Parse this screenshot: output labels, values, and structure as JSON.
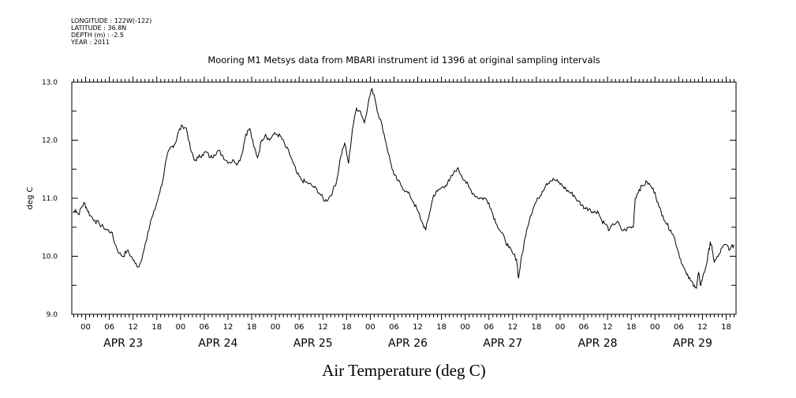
{
  "meta": {
    "longitude": "LONGITUDE : 122W(-122)",
    "latitude": "LATITUDE : 36.8N",
    "depth": "DEPTH (m) : -2.5",
    "year": "YEAR : 2011"
  },
  "chart_data": {
    "type": "line",
    "title": "Mooring M1 Metsys data from MBARI instrument id 1396 at original sampling intervals",
    "xlabel": "Air Temperature (deg C)",
    "ylabel": "deg C",
    "ylim": [
      9.0,
      13.0
    ],
    "y_ticks": [
      "9.0",
      "10.0",
      "11.0",
      "12.0",
      "13.0"
    ],
    "x_range_hours": [
      -3.5,
      164.5
    ],
    "hour_ticks": [
      {
        "h": 0,
        "label": "00"
      },
      {
        "h": 6,
        "label": "06"
      },
      {
        "h": 12,
        "label": "12"
      },
      {
        "h": 18,
        "label": "18"
      },
      {
        "h": 24,
        "label": "00"
      },
      {
        "h": 30,
        "label": "06"
      },
      {
        "h": 36,
        "label": "12"
      },
      {
        "h": 42,
        "label": "18"
      },
      {
        "h": 48,
        "label": "00"
      },
      {
        "h": 54,
        "label": "06"
      },
      {
        "h": 60,
        "label": "12"
      },
      {
        "h": 66,
        "label": "18"
      },
      {
        "h": 72,
        "label": "00"
      },
      {
        "h": 78,
        "label": "06"
      },
      {
        "h": 84,
        "label": "12"
      },
      {
        "h": 90,
        "label": "18"
      },
      {
        "h": 96,
        "label": "00"
      },
      {
        "h": 102,
        "label": "06"
      },
      {
        "h": 108,
        "label": "12"
      },
      {
        "h": 114,
        "label": "18"
      },
      {
        "h": 120,
        "label": "00"
      },
      {
        "h": 126,
        "label": "06"
      },
      {
        "h": 132,
        "label": "12"
      },
      {
        "h": 138,
        "label": "18"
      },
      {
        "h": 144,
        "label": "00"
      },
      {
        "h": 150,
        "label": "06"
      },
      {
        "h": 156,
        "label": "12"
      },
      {
        "h": 162,
        "label": "18"
      }
    ],
    "day_labels": [
      {
        "h": 9.5,
        "label": "APR 23"
      },
      {
        "h": 33.5,
        "label": "APR 24"
      },
      {
        "h": 57.5,
        "label": "APR 25"
      },
      {
        "h": 81.5,
        "label": "APR 26"
      },
      {
        "h": 105.5,
        "label": "APR 27"
      },
      {
        "h": 129.5,
        "label": "APR 28"
      },
      {
        "h": 153.5,
        "label": "APR 29"
      }
    ],
    "series": [
      {
        "color": "#000000",
        "points": [
          [
            -3.2,
            10.75
          ],
          [
            -2.5,
            10.8
          ],
          [
            -1.8,
            10.72
          ],
          [
            -1.0,
            10.85
          ],
          [
            -0.3,
            10.92
          ],
          [
            0.3,
            10.82
          ],
          [
            1.2,
            10.7
          ],
          [
            2.3,
            10.62
          ],
          [
            3.5,
            10.55
          ],
          [
            4.5,
            10.5
          ],
          [
            5.5,
            10.45
          ],
          [
            6.5,
            10.42
          ],
          [
            7.5,
            10.2
          ],
          [
            8.5,
            10.05
          ],
          [
            9.5,
            10.0
          ],
          [
            10.5,
            10.1
          ],
          [
            11.5,
            10.0
          ],
          [
            12.5,
            9.88
          ],
          [
            13.5,
            9.82
          ],
          [
            14.5,
            10.05
          ],
          [
            15.5,
            10.3
          ],
          [
            16.5,
            10.62
          ],
          [
            17.5,
            10.8
          ],
          [
            18.5,
            11.05
          ],
          [
            19.5,
            11.3
          ],
          [
            20.5,
            11.7
          ],
          [
            21.3,
            11.85
          ],
          [
            22.0,
            11.9
          ],
          [
            22.7,
            11.95
          ],
          [
            23.5,
            12.15
          ],
          [
            24.5,
            12.25
          ],
          [
            25.5,
            12.2
          ],
          [
            26.5,
            11.85
          ],
          [
            27.5,
            11.65
          ],
          [
            28.5,
            11.7
          ],
          [
            29.5,
            11.75
          ],
          [
            30.5,
            11.8
          ],
          [
            31.5,
            11.7
          ],
          [
            32.5,
            11.75
          ],
          [
            33.5,
            11.82
          ],
          [
            34.5,
            11.75
          ],
          [
            35.5,
            11.65
          ],
          [
            36.5,
            11.62
          ],
          [
            37.5,
            11.65
          ],
          [
            38.5,
            11.6
          ],
          [
            39.5,
            11.75
          ],
          [
            40.5,
            12.1
          ],
          [
            41.5,
            12.2
          ],
          [
            42.5,
            11.9
          ],
          [
            43.5,
            11.7
          ],
          [
            44.5,
            12.0
          ],
          [
            45.5,
            12.1
          ],
          [
            46.5,
            12.0
          ],
          [
            47.5,
            12.1
          ],
          [
            48.5,
            12.1
          ],
          [
            49.5,
            12.05
          ],
          [
            50.5,
            11.9
          ],
          [
            51.5,
            11.78
          ],
          [
            52.5,
            11.6
          ],
          [
            53.5,
            11.42
          ],
          [
            54.5,
            11.32
          ],
          [
            55.5,
            11.28
          ],
          [
            56.5,
            11.25
          ],
          [
            57.5,
            11.2
          ],
          [
            58.5,
            11.15
          ],
          [
            59.5,
            11.05
          ],
          [
            60.5,
            10.95
          ],
          [
            61.5,
            11.0
          ],
          [
            62.5,
            11.12
          ],
          [
            63.5,
            11.3
          ],
          [
            64.5,
            11.72
          ],
          [
            65.5,
            11.95
          ],
          [
            66.5,
            11.6
          ],
          [
            67.5,
            12.2
          ],
          [
            68.5,
            12.55
          ],
          [
            69.5,
            12.5
          ],
          [
            70.5,
            12.3
          ],
          [
            71.5,
            12.65
          ],
          [
            72.3,
            12.88
          ],
          [
            73.0,
            12.78
          ],
          [
            74.0,
            12.45
          ],
          [
            75.0,
            12.25
          ],
          [
            76.0,
            11.95
          ],
          [
            77.0,
            11.65
          ],
          [
            78.0,
            11.4
          ],
          [
            79.0,
            11.3
          ],
          [
            80.0,
            11.2
          ],
          [
            81.0,
            11.12
          ],
          [
            82.0,
            11.05
          ],
          [
            83.0,
            10.92
          ],
          [
            84.0,
            10.78
          ],
          [
            85.0,
            10.6
          ],
          [
            86.0,
            10.45
          ],
          [
            87.0,
            10.75
          ],
          [
            88.0,
            11.05
          ],
          [
            89.0,
            11.12
          ],
          [
            90.0,
            11.18
          ],
          [
            91.0,
            11.22
          ],
          [
            92.0,
            11.3
          ],
          [
            93.0,
            11.42
          ],
          [
            94.0,
            11.52
          ],
          [
            95.0,
            11.4
          ],
          [
            96.0,
            11.3
          ],
          [
            97.0,
            11.18
          ],
          [
            98.0,
            11.08
          ],
          [
            99.0,
            11.02
          ],
          [
            100.0,
            11.0
          ],
          [
            101.0,
            11.0
          ],
          [
            102.0,
            10.92
          ],
          [
            103.0,
            10.72
          ],
          [
            104.0,
            10.55
          ],
          [
            105.0,
            10.42
          ],
          [
            106.0,
            10.3
          ],
          [
            107.0,
            10.15
          ],
          [
            108.0,
            10.05
          ],
          [
            109.0,
            9.95
          ],
          [
            109.5,
            9.62
          ],
          [
            110.0,
            9.88
          ],
          [
            110.8,
            10.18
          ],
          [
            111.5,
            10.45
          ],
          [
            112.5,
            10.7
          ],
          [
            113.5,
            10.88
          ],
          [
            114.5,
            11.0
          ],
          [
            115.5,
            11.12
          ],
          [
            116.5,
            11.25
          ],
          [
            117.5,
            11.3
          ],
          [
            118.5,
            11.32
          ],
          [
            119.5,
            11.28
          ],
          [
            120.5,
            11.22
          ],
          [
            121.5,
            11.15
          ],
          [
            122.5,
            11.1
          ],
          [
            123.5,
            11.05
          ],
          [
            124.5,
            10.95
          ],
          [
            125.5,
            10.88
          ],
          [
            126.5,
            10.82
          ],
          [
            127.5,
            10.82
          ],
          [
            128.5,
            10.75
          ],
          [
            129.5,
            10.78
          ],
          [
            130.5,
            10.62
          ],
          [
            131.5,
            10.55
          ],
          [
            132.5,
            10.45
          ],
          [
            133.5,
            10.55
          ],
          [
            134.5,
            10.6
          ],
          [
            135.5,
            10.45
          ],
          [
            136.5,
            10.45
          ],
          [
            137.5,
            10.5
          ],
          [
            138.5,
            10.5
          ],
          [
            139.0,
            11.0
          ],
          [
            140.0,
            11.15
          ],
          [
            141.0,
            11.22
          ],
          [
            142.0,
            11.28
          ],
          [
            143.0,
            11.2
          ],
          [
            144.0,
            11.1
          ],
          [
            145.0,
            10.85
          ],
          [
            146.0,
            10.7
          ],
          [
            147.0,
            10.55
          ],
          [
            148.0,
            10.45
          ],
          [
            149.0,
            10.3
          ],
          [
            150.0,
            10.05
          ],
          [
            151.0,
            9.85
          ],
          [
            152.0,
            9.68
          ],
          [
            153.0,
            9.58
          ],
          [
            154.0,
            9.5
          ],
          [
            154.5,
            9.45
          ],
          [
            155.0,
            9.72
          ],
          [
            155.5,
            9.5
          ],
          [
            156.0,
            9.62
          ],
          [
            157.0,
            9.85
          ],
          [
            157.5,
            10.05
          ],
          [
            158.0,
            10.25
          ],
          [
            158.5,
            10.1
          ],
          [
            159.0,
            9.9
          ],
          [
            160.0,
            10.0
          ],
          [
            161.0,
            10.15
          ],
          [
            162.0,
            10.2
          ],
          [
            163.0,
            10.12
          ],
          [
            164.0,
            10.2
          ]
        ]
      }
    ]
  }
}
